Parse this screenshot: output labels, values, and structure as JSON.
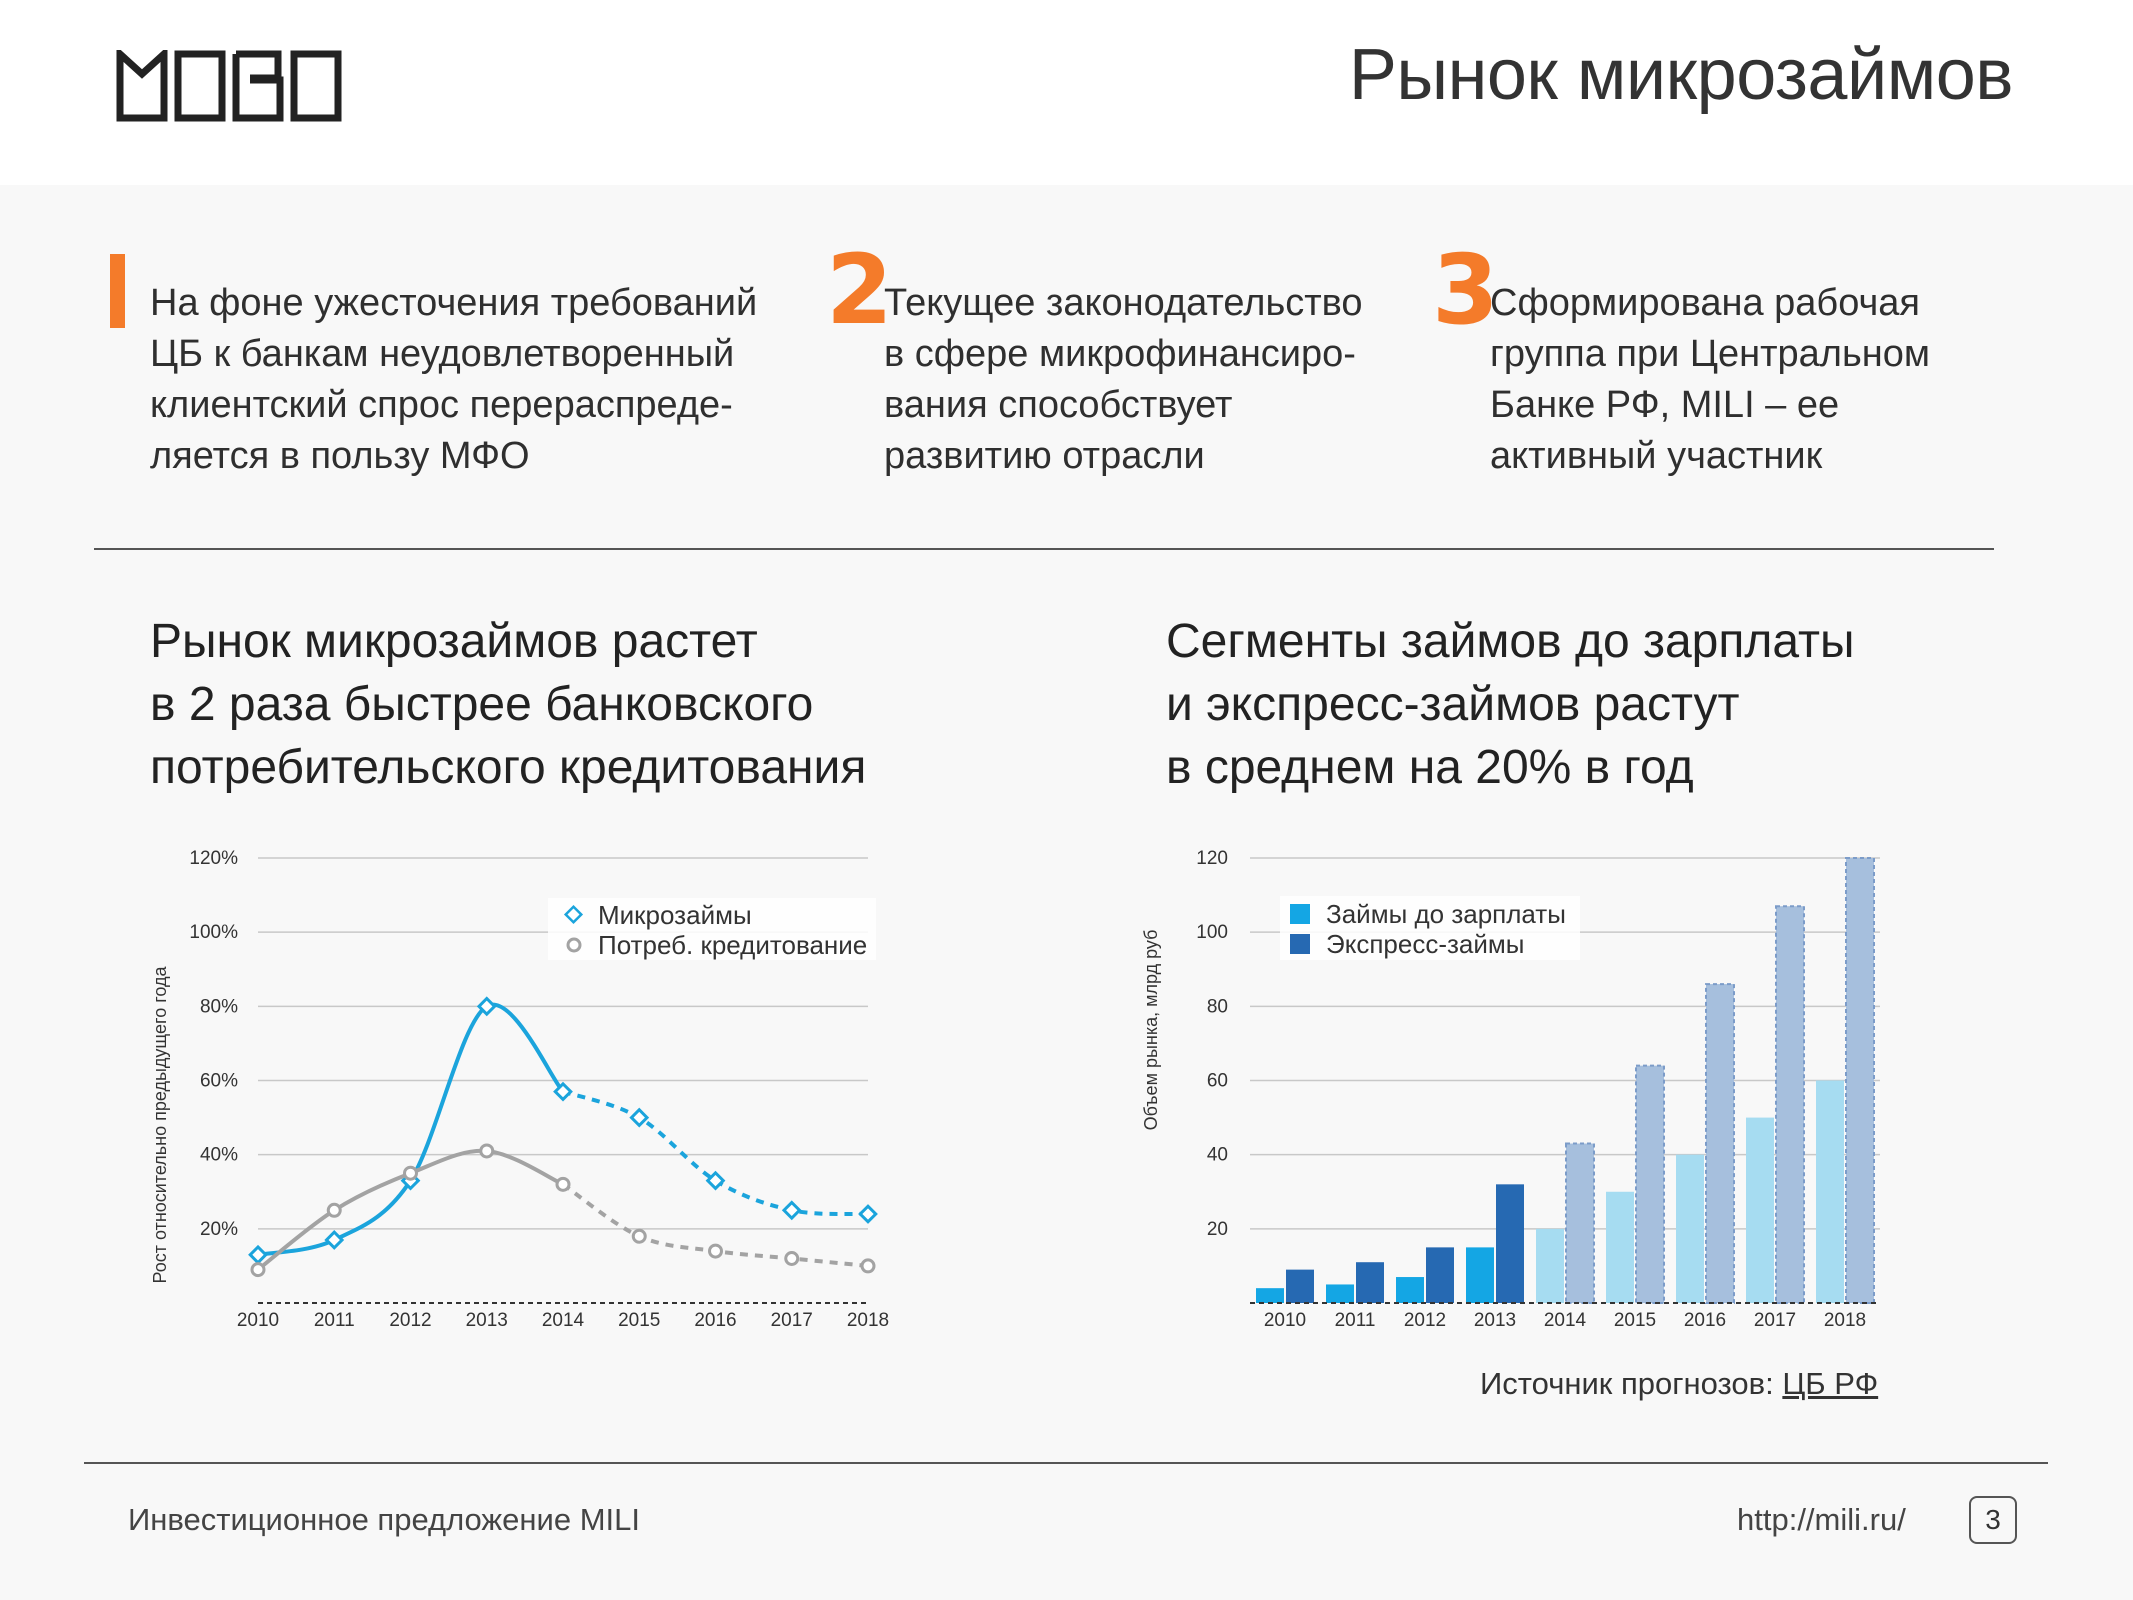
{
  "header": {
    "logo_text": "MOBO",
    "title": "Рынок микрозаймов"
  },
  "points": [
    {
      "number": "1",
      "lines": [
        "На фоне ужесточения требований",
        "ЦБ к банкам неудовлетворенный",
        "клиентский спрос перераспреде-",
        "ляется в пользу МФО"
      ]
    },
    {
      "number": "2",
      "lines": [
        "Текущее законодательство",
        "в сфере микрофинансиро-",
        "вания способствует",
        "развитию отрасли"
      ]
    },
    {
      "number": "3",
      "lines": [
        "Сформирована рабочая",
        "группа при Центральном",
        "Банке РФ, MILI – ее",
        "активный участник"
      ]
    }
  ],
  "chart_data": [
    {
      "type": "line",
      "title": "Рынок микрозаймов растет в 2 раза быстрее банковского потребительского кредитования",
      "title_lines": [
        "Рынок микрозаймов растет",
        "в 2 раза быстрее банковского",
        "потребительского кредитования"
      ],
      "ylabel": "Рост относительно предыдущего года",
      "xlabel": "",
      "x": [
        "2010",
        "2011",
        "2012",
        "2013",
        "2014",
        "2015",
        "2016",
        "2017",
        "2018"
      ],
      "y_ticks": [
        "20%",
        "40%",
        "60%",
        "80%",
        "100%",
        "120%"
      ],
      "ylim": [
        0,
        120
      ],
      "forecast_from": "2014",
      "legend_position": "top-right",
      "series": [
        {
          "name": "Микрозаймы",
          "color": "#1ba4dc",
          "values": [
            13,
            17,
            33,
            80,
            57,
            50,
            33,
            25,
            24
          ]
        },
        {
          "name": "Потреб. кредитование",
          "color": "#a3a3a3",
          "values": [
            9,
            25,
            35,
            41,
            32,
            18,
            14,
            12,
            10
          ]
        }
      ]
    },
    {
      "type": "bar",
      "title": "Сегменты займов до зарплаты и экспресс-займов растут в среднем на 20% в год",
      "title_lines": [
        "Сегменты займов до зарплаты",
        "и экспресс-займов растут",
        "в среднем на 20% в год"
      ],
      "ylabel": "Объем рынка, млрд руб",
      "xlabel": "",
      "categories": [
        "2010",
        "2011",
        "2012",
        "2013",
        "2014",
        "2015",
        "2016",
        "2017",
        "2018"
      ],
      "y_ticks": [
        "20",
        "40",
        "60",
        "80",
        "100",
        "120"
      ],
      "ylim": [
        0,
        120
      ],
      "forecast_from": "2014",
      "legend_position": "top-left",
      "series": [
        {
          "name": "Займы до зарплаты",
          "color": "#14a6e4",
          "forecast_color": "#a6dcf1",
          "values": [
            4,
            5,
            7,
            15,
            20,
            30,
            40,
            50,
            60
          ]
        },
        {
          "name": "Экспресс-займы",
          "color": "#2669b2",
          "forecast_color": "#a6bfdd",
          "values": [
            9,
            11,
            15,
            32,
            43,
            64,
            86,
            107,
            120
          ]
        }
      ]
    }
  ],
  "source": {
    "prefix": "Источник прогнозов:",
    "link": "ЦБ РФ"
  },
  "footer": {
    "left": "Инвестиционное предложение MILI",
    "url": "http://mili.ru/",
    "page": "3"
  }
}
